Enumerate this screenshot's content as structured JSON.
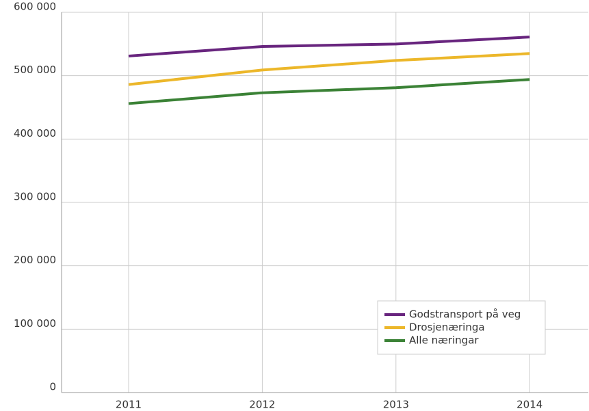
{
  "chart_data": {
    "type": "line",
    "categories": [
      "2011",
      "2012",
      "2013",
      "2014"
    ],
    "series": [
      {
        "name": "Godstransport på veg",
        "color": "#68257e",
        "values": [
          531000,
          546000,
          550000,
          561000
        ]
      },
      {
        "name": "Drosjenæringa",
        "color": "#ecb72a",
        "values": [
          486000,
          509000,
          524000,
          535000
        ]
      },
      {
        "name": "Alle næringar",
        "color": "#3b8236",
        "values": [
          456000,
          473000,
          481000,
          494000
        ]
      }
    ],
    "ylim": [
      0,
      600000
    ],
    "yticks": [
      0,
      {
        "value": 100000,
        "label": "100 000"
      },
      {
        "value": 200000,
        "label": "200 000"
      },
      {
        "value": 300000,
        "label": "300 000"
      },
      {
        "value": 400000,
        "label": "400 000"
      },
      {
        "value": 500000,
        "label": "500 000"
      },
      {
        "value": 600000,
        "label": "600 000"
      }
    ],
    "grid": true,
    "legend": "lower right"
  }
}
